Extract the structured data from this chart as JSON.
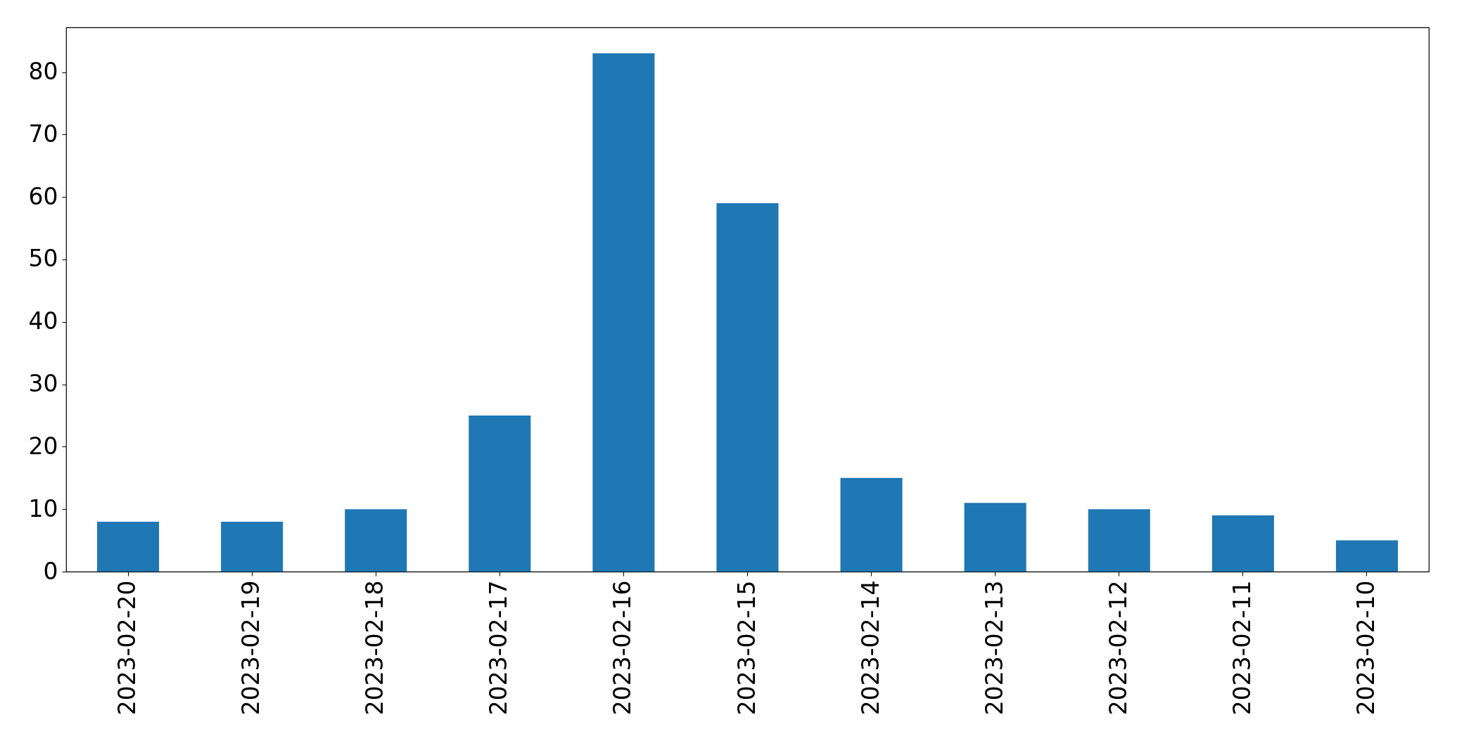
{
  "chart_data": {
    "type": "bar",
    "categories": [
      "2023-02-20",
      "2023-02-19",
      "2023-02-18",
      "2023-02-17",
      "2023-02-16",
      "2023-02-15",
      "2023-02-14",
      "2023-02-13",
      "2023-02-12",
      "2023-02-11",
      "2023-02-10"
    ],
    "values": [
      8,
      8,
      10,
      25,
      83,
      59,
      15,
      11,
      10,
      9,
      5
    ],
    "color": "#1f77b4",
    "ylim": [
      0,
      87.15
    ],
    "yticks": [
      0,
      10,
      20,
      30,
      40,
      50,
      60,
      70,
      80
    ]
  }
}
